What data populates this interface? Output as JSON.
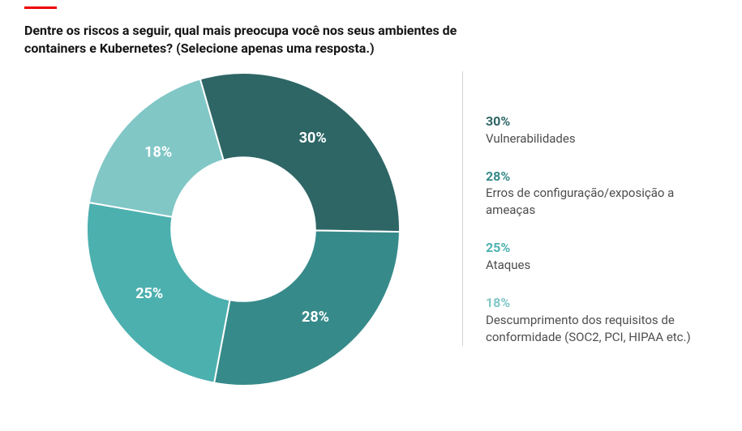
{
  "accent_color": "#ee0000",
  "background_color": "#ffffff",
  "title": "Dentre os riscos a seguir, qual mais preocupa você nos seus ambientes de containers e Kubernetes? (Selecione apenas uma resposta.)",
  "title_color": "#151515",
  "title_fontsize": 16,
  "chart": {
    "type": "donut",
    "inner_radius_ratio": 0.46,
    "size": 390,
    "start_angle_deg": -16,
    "label_fontsize": 18,
    "label_fontweight": 700,
    "label_text_color": "#ffffff",
    "slices": [
      {
        "label": "Vulnerabilidades",
        "value": 30,
        "pct_text": "30%",
        "color": "#2e6666"
      },
      {
        "label": "Erros de configuração/exposição a ameaças",
        "value": 28,
        "pct_text": "28%",
        "color": "#378a8a"
      },
      {
        "label": "Ataques",
        "value": 25,
        "pct_text": "25%",
        "color": "#4cb0af"
      },
      {
        "label": "Descumprimento dos requisitos de conformidade (SOC2, PCI, HIPAA etc.)",
        "value": 18,
        "pct_text": "18%",
        "color": "#80c7c6"
      }
    ],
    "gap_color": "#ffffff",
    "gap_width": 2
  },
  "legend": {
    "border_color": "#d2d2d2",
    "pct_fontsize": 16,
    "pct_fontweight": 700,
    "label_fontsize": 15,
    "label_color": "#4d4d4d"
  }
}
